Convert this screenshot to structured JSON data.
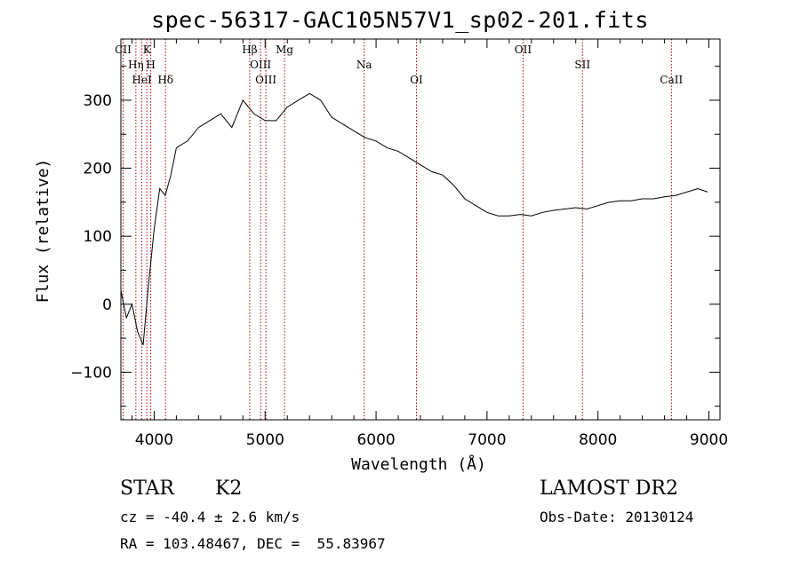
{
  "title": "spec-56317-GAC105N57V1_sp02-201.fits",
  "footer": {
    "class_label": "STAR",
    "subclass_label": "K2",
    "cz_text": "cz = -40.4 ± 2.6 km/s",
    "coords_text": "RA = 103.48467, DEC =  55.83967",
    "survey_label": "LAMOST DR2",
    "obs_date_text": "Obs-Date: 20130124"
  },
  "chart_data": {
    "type": "line",
    "xlabel": "Wavelength (Å)",
    "ylabel": "Flux (relative)",
    "xlim": [
      3700,
      9100
    ],
    "ylim": [
      -170,
      390
    ],
    "xticks": [
      4000,
      5000,
      6000,
      7000,
      8000,
      9000
    ],
    "yticks": [
      -100,
      0,
      100,
      200,
      300
    ],
    "grid": false,
    "line_markers": [
      {
        "label": "CII",
        "x": 3720
      },
      {
        "label": "Hη",
        "x": 3835
      },
      {
        "label": "HeI",
        "x": 3889
      },
      {
        "label": "K",
        "x": 3934
      },
      {
        "label": "H",
        "x": 3969
      },
      {
        "label": "Hδ",
        "x": 4102
      },
      {
        "label": "Hβ",
        "x": 4861
      },
      {
        "label": "OIII",
        "x": 4959
      },
      {
        "label": "OIII",
        "x": 5007
      },
      {
        "label": "Mg",
        "x": 5175
      },
      {
        "label": "Na",
        "x": 5893
      },
      {
        "label": "OI",
        "x": 6364
      },
      {
        "label": "OII",
        "x": 7325
      },
      {
        "label": "SII",
        "x": 7860
      },
      {
        "label": "CaII",
        "x": 8662
      }
    ],
    "series": [
      {
        "x": [
          3700,
          3750,
          3800,
          3850,
          3900,
          3950,
          4000,
          4050,
          4100,
          4150,
          4200,
          4300,
          4400,
          4500,
          4600,
          4700,
          4800,
          4900,
          5000,
          5100,
          5200,
          5300,
          5400,
          5500,
          5600,
          5700,
          5800,
          5900,
          6000,
          6100,
          6200,
          6300,
          6400,
          6500,
          6600,
          6700,
          6800,
          6900,
          7000,
          7100,
          7200,
          7300,
          7400,
          7500,
          7600,
          7700,
          7800,
          7900,
          8000,
          8100,
          8200,
          8300,
          8400,
          8500,
          8600,
          8700,
          8800,
          8900,
          8990
        ],
        "values": [
          20,
          -20,
          0,
          -40,
          -60,
          30,
          110,
          170,
          160,
          190,
          230,
          240,
          260,
          270,
          280,
          260,
          300,
          280,
          270,
          270,
          290,
          300,
          310,
          300,
          275,
          265,
          255,
          245,
          240,
          230,
          225,
          215,
          205,
          195,
          190,
          175,
          155,
          145,
          135,
          130,
          130,
          132,
          130,
          135,
          138,
          140,
          142,
          140,
          145,
          150,
          152,
          152,
          155,
          155,
          158,
          160,
          165,
          170,
          165
        ]
      }
    ]
  }
}
